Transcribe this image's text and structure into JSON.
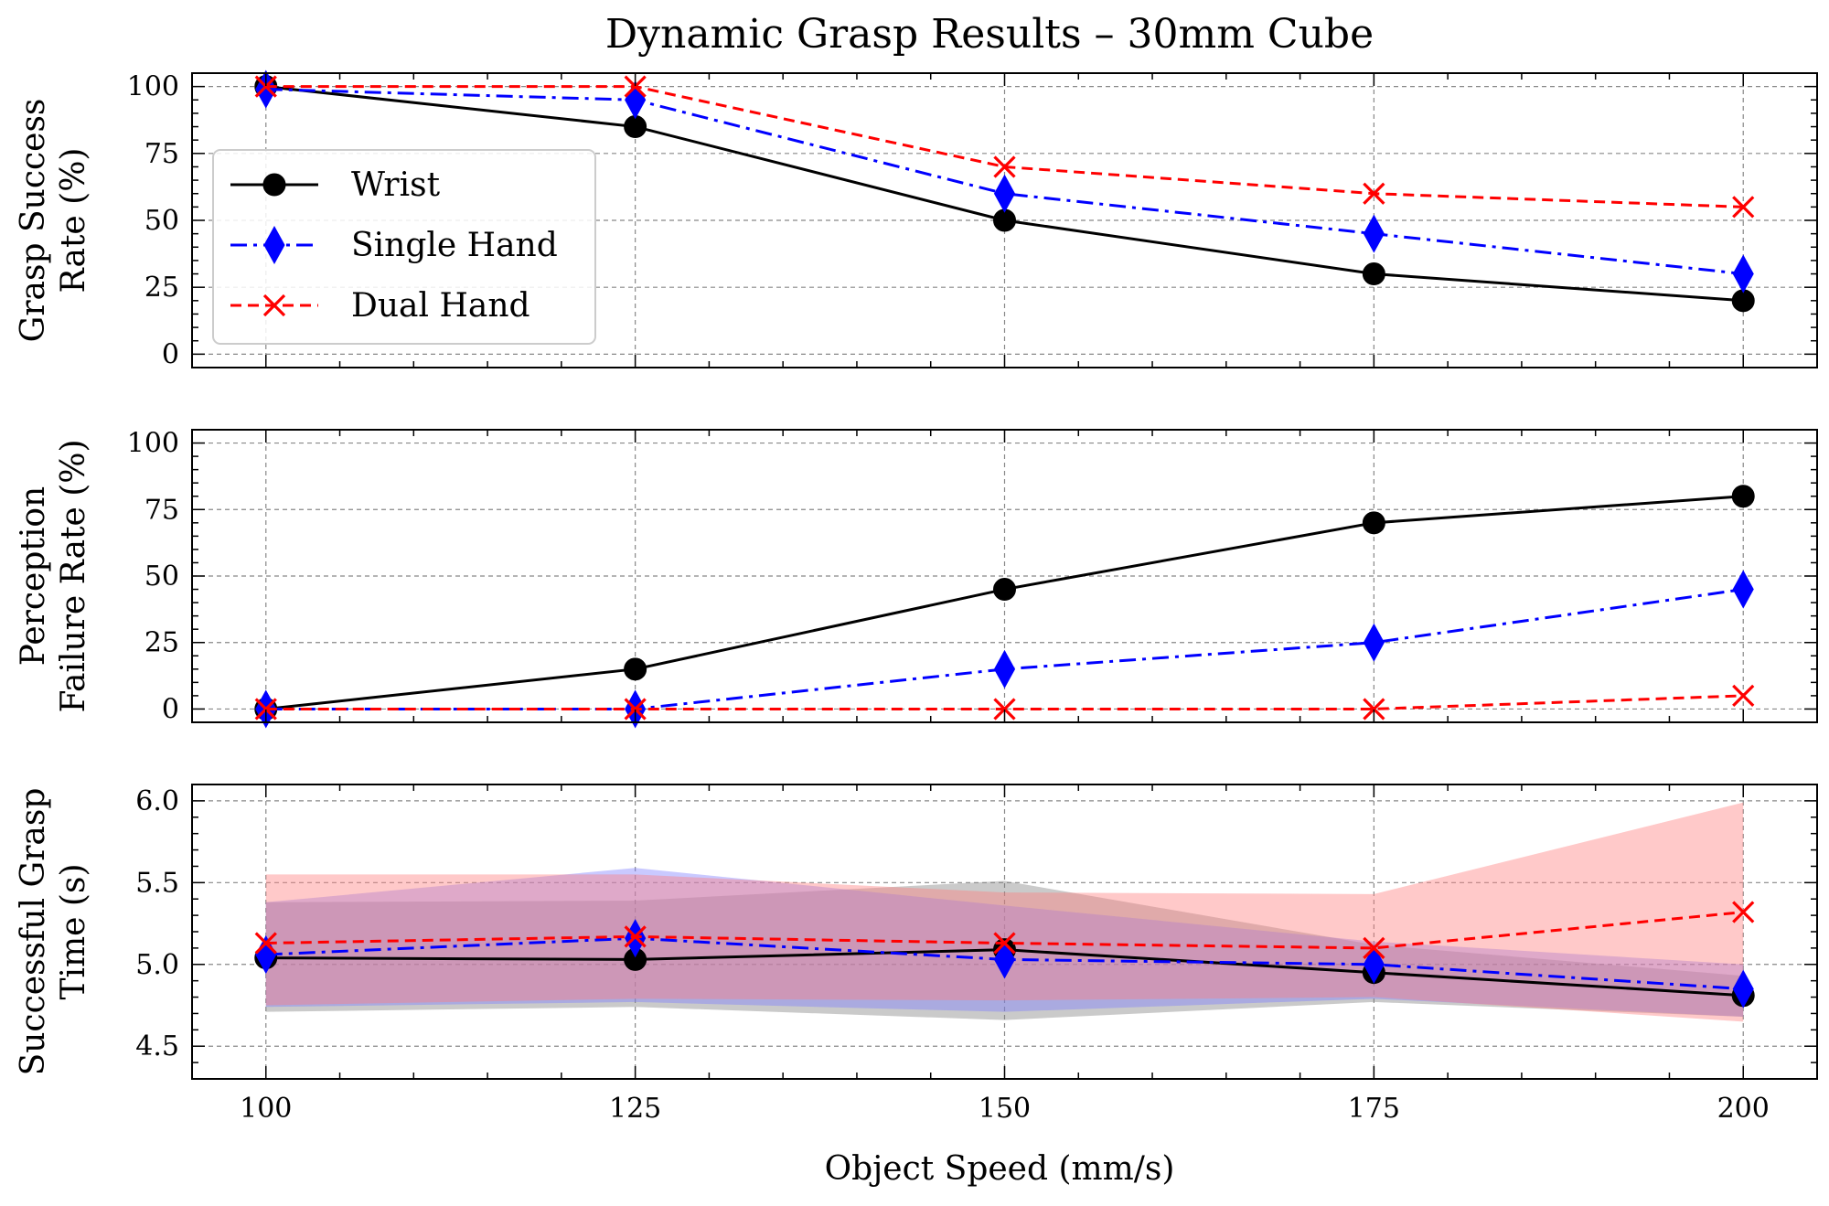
{
  "title": "Dynamic Grasp Results – 30mm Cube",
  "xlabel": "Object Speed (mm/s)",
  "legend": {
    "entries": [
      "Wrist",
      "Single Hand",
      "Dual Hand"
    ]
  },
  "colors": {
    "wrist": "#000000",
    "single": "#0000ff",
    "dual": "#ff0000",
    "grid": "#888888"
  },
  "chart_data": [
    {
      "type": "line",
      "ylabel_lines": [
        "Grasp Success",
        "Rate (%)"
      ],
      "x": [
        100,
        125,
        150,
        175,
        200
      ],
      "xlim": [
        95,
        205
      ],
      "ylim": [
        -5,
        105
      ],
      "yticks": [
        0,
        25,
        50,
        75,
        100
      ],
      "grid": true,
      "legend_position": "center-left",
      "series": [
        {
          "name": "Wrist",
          "values": [
            100,
            85,
            50,
            30,
            20
          ]
        },
        {
          "name": "Single Hand",
          "values": [
            99,
            95,
            60,
            45,
            30
          ]
        },
        {
          "name": "Dual Hand",
          "values": [
            100,
            100,
            70,
            60,
            55
          ]
        }
      ]
    },
    {
      "type": "line",
      "ylabel_lines": [
        "Perception",
        "Failure Rate (%)"
      ],
      "x": [
        100,
        125,
        150,
        175,
        200
      ],
      "xlim": [
        95,
        205
      ],
      "ylim": [
        -5,
        105
      ],
      "yticks": [
        0,
        25,
        50,
        75,
        100
      ],
      "grid": true,
      "series": [
        {
          "name": "Wrist",
          "values": [
            0,
            15,
            45,
            70,
            80
          ]
        },
        {
          "name": "Single Hand",
          "values": [
            0,
            0,
            15,
            25,
            45
          ]
        },
        {
          "name": "Dual Hand",
          "values": [
            0,
            0,
            0,
            0,
            5
          ]
        }
      ]
    },
    {
      "type": "area",
      "ylabel_lines": [
        "Successful Grasp",
        "Time (s)"
      ],
      "x": [
        100,
        125,
        150,
        175,
        200
      ],
      "xlim": [
        95,
        205
      ],
      "ylim": [
        4.3,
        6.1
      ],
      "yticks": [
        4.5,
        5.0,
        5.5,
        6.0
      ],
      "ytick_labels": [
        "4.5",
        "5.0",
        "5.5",
        "6.0"
      ],
      "xticks": [
        100,
        125,
        150,
        175,
        200
      ],
      "grid": true,
      "series": [
        {
          "name": "Wrist",
          "values": [
            5.04,
            5.03,
            5.09,
            4.95,
            4.81
          ],
          "lower": [
            4.71,
            4.74,
            4.66,
            4.77,
            4.68
          ],
          "upper": [
            5.38,
            5.39,
            5.51,
            5.12,
            4.93
          ]
        },
        {
          "name": "Single Hand",
          "values": [
            5.06,
            5.16,
            5.03,
            5.0,
            4.85
          ],
          "lower": [
            4.74,
            4.77,
            4.71,
            4.79,
            4.68
          ],
          "upper": [
            5.38,
            5.59,
            5.36,
            5.14,
            5.0
          ]
        },
        {
          "name": "Dual Hand",
          "values": [
            5.13,
            5.17,
            5.13,
            5.1,
            5.32
          ],
          "lower": [
            4.75,
            4.79,
            4.78,
            4.8,
            4.65
          ],
          "upper": [
            5.55,
            5.55,
            5.44,
            5.43,
            5.99
          ]
        }
      ]
    }
  ]
}
